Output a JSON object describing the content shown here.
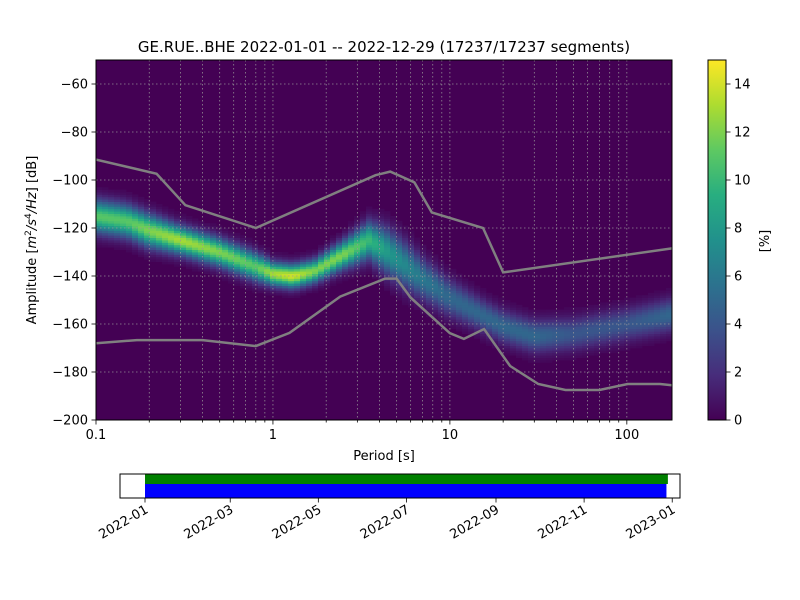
{
  "chart_data": {
    "type": "heatmap",
    "title": "GE.RUE..BHE   2022-01-01 -- 2022-12-29  (17237/17237 segments)",
    "xlabel": "Period [s]",
    "ylabel_prefix": "Amplitude [",
    "ylabel_unit_m": "m",
    "ylabel_unit_2": "2",
    "ylabel_unit_s": "/s",
    "ylabel_unit_4": "4",
    "ylabel_unit_hz": "/Hz",
    "ylabel_suffix": "] [dB]",
    "x_scale": "log",
    "xlim": [
      0.1,
      180
    ],
    "ylim": [
      -200,
      -50
    ],
    "x_ticks": [
      {
        "v": 0.1,
        "label": "0.1"
      },
      {
        "v": 1,
        "label": "1"
      },
      {
        "v": 10,
        "label": "10"
      },
      {
        "v": 100,
        "label": "100"
      }
    ],
    "y_ticks": [
      {
        "v": -60,
        "label": "−60"
      },
      {
        "v": -80,
        "label": "−80"
      },
      {
        "v": -100,
        "label": "−100"
      },
      {
        "v": -120,
        "label": "−120"
      },
      {
        "v": -140,
        "label": "−140"
      },
      {
        "v": -160,
        "label": "−160"
      },
      {
        "v": -180,
        "label": "−180"
      },
      {
        "v": -200,
        "label": "−200"
      }
    ],
    "grid": true,
    "colorbar": {
      "label": "[%]",
      "range": [
        0,
        15
      ],
      "ticks": [
        {
          "v": 0,
          "label": "0"
        },
        {
          "v": 2,
          "label": "2"
        },
        {
          "v": 4,
          "label": "4"
        },
        {
          "v": 6,
          "label": "6"
        },
        {
          "v": 8,
          "label": "8"
        },
        {
          "v": 10,
          "label": "10"
        },
        {
          "v": 12,
          "label": "12"
        },
        {
          "v": 14,
          "label": "14"
        }
      ]
    },
    "psd_mode": {
      "period": [
        0.1,
        0.15,
        0.2,
        0.3,
        0.5,
        0.8,
        1.0,
        1.3,
        1.7,
        2.5,
        3.5,
        4.5,
        5.5,
        7.0,
        10,
        15,
        20,
        30,
        50,
        100,
        180
      ],
      "amplitude": [
        -115,
        -117,
        -121,
        -125,
        -130,
        -136,
        -139,
        -140,
        -138,
        -131,
        -125,
        -130,
        -135,
        -141,
        -149,
        -156,
        -161,
        -165,
        -164,
        -160,
        -156
      ],
      "percent": [
        11,
        11,
        12,
        13,
        12,
        11,
        13,
        14,
        12,
        12,
        10,
        8,
        7,
        6,
        5,
        5,
        5,
        5,
        4,
        4,
        5
      ]
    },
    "psd_width_db": [
      7,
      7,
      7,
      6,
      6,
      6,
      5,
      5,
      5,
      6,
      8,
      10,
      10,
      9,
      8,
      7,
      7,
      7,
      7,
      7,
      7
    ],
    "nhnm": {
      "period": [
        0.1,
        0.22,
        0.32,
        0.8,
        3.8,
        4.6,
        6.3,
        7.9,
        15.4,
        20,
        180
      ],
      "amplitude": [
        -91.5,
        -97.4,
        -110.5,
        -120,
        -98,
        -96.5,
        -101,
        -113.5,
        -120,
        -138.5,
        -128.5
      ]
    },
    "nlnm": {
      "period": [
        0.1,
        0.17,
        0.4,
        0.8,
        1.24,
        2.4,
        4.3,
        5,
        6,
        10,
        12,
        15.6,
        21.9,
        31.6,
        45,
        70,
        101,
        154,
        180
      ],
      "amplitude": [
        -168,
        -166.7,
        -166.7,
        -169.2,
        -163.7,
        -148.6,
        -141.1,
        -141.1,
        -149,
        -163.8,
        -166.2,
        -162.1,
        -177.5,
        -185,
        -187.5,
        -187.5,
        -185,
        -185,
        -185.5
      ]
    },
    "timeline": {
      "date_range": [
        "2022-01-01",
        "2023-01-05"
      ],
      "coverage_green": [
        "2022-01-01",
        "2022-12-29"
      ],
      "coverage_blue": [
        "2022-01-01",
        "2022-12-28"
      ],
      "colors": {
        "green": "#008000",
        "blue": "#0000ff"
      },
      "ticks": [
        {
          "date": "2022-01-01",
          "label": "2022-01"
        },
        {
          "date": "2022-03-01",
          "label": "2022-03"
        },
        {
          "date": "2022-05-01",
          "label": "2022-05"
        },
        {
          "date": "2022-07-01",
          "label": "2022-07"
        },
        {
          "date": "2022-09-01",
          "label": "2022-09"
        },
        {
          "date": "2022-11-01",
          "label": "2022-11"
        },
        {
          "date": "2023-01-01",
          "label": "2023-01"
        }
      ]
    }
  }
}
